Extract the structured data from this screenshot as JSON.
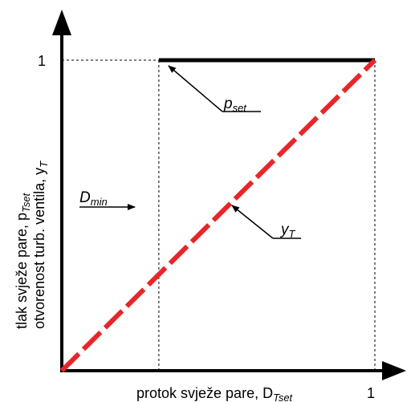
{
  "chart_data": {
    "type": "line",
    "xlabel": {
      "text": "protok svježe pare, D",
      "sub": "Tset"
    },
    "ylabel_line1": {
      "text": "tlak svježe pare, p",
      "sub": "Tset"
    },
    "ylabel_line2": {
      "text": "otvorenost turb. ventila, y",
      "sub": "T"
    },
    "x_tick_label": "1",
    "y_tick_label": "1",
    "xlim": [
      0,
      1
    ],
    "ylim": [
      0,
      1
    ],
    "d_min": 0.31,
    "series": [
      {
        "name": "p_set",
        "x": [
          0.31,
          1.0
        ],
        "y": [
          1.0,
          1.0
        ],
        "color": "#000000"
      },
      {
        "name": "y_T",
        "x": [
          0.0,
          0.31,
          1.0
        ],
        "y": [
          0.0,
          0.26,
          1.0
        ],
        "color": "#e8262a"
      }
    ],
    "annotations": [
      {
        "text": "p",
        "sub": "set",
        "target": "p_set"
      },
      {
        "text": "y",
        "sub": "T",
        "target": "y_T"
      },
      {
        "text": "D",
        "sub": "min",
        "target": "d_min"
      }
    ]
  }
}
